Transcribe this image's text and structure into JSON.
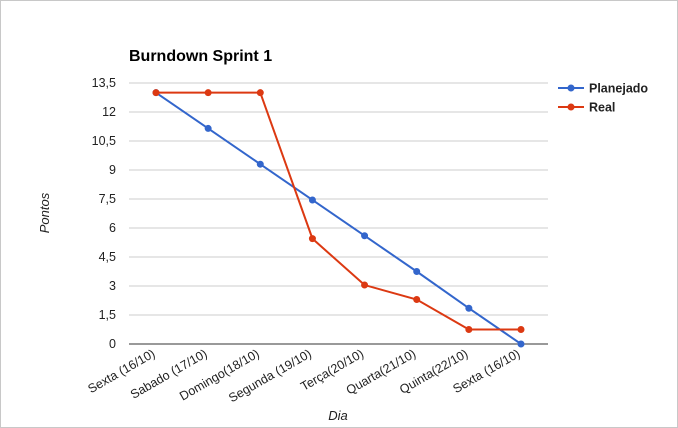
{
  "chart_data": {
    "type": "line",
    "title": "Burndown Sprint 1",
    "xlabel": "Dia",
    "ylabel": "Pontos",
    "categories": [
      "Sexta (16/10)",
      "Sabado (17/10)",
      "Domingo(18/10)",
      "Segunda (19/10)",
      "Terça(20/10)",
      "Quarta(21/10)",
      "Quinta(22/10)",
      "Sexta (16/10)"
    ],
    "yticks": [
      "0",
      "1,5",
      "3",
      "4,5",
      "6",
      "7,5",
      "9",
      "10,5",
      "12",
      "13,5"
    ],
    "ylim": [
      0,
      13.5
    ],
    "grid": true,
    "legend": "right",
    "series": [
      {
        "name": "Planejado",
        "color": "#3366cc",
        "values": [
          13,
          11.15,
          9.3,
          7.45,
          5.6,
          3.75,
          1.85,
          0
        ]
      },
      {
        "name": "Real",
        "color": "#dc3912",
        "values": [
          13,
          13,
          13,
          5.45,
          3.05,
          2.3,
          0.75,
          0.75
        ]
      }
    ]
  }
}
